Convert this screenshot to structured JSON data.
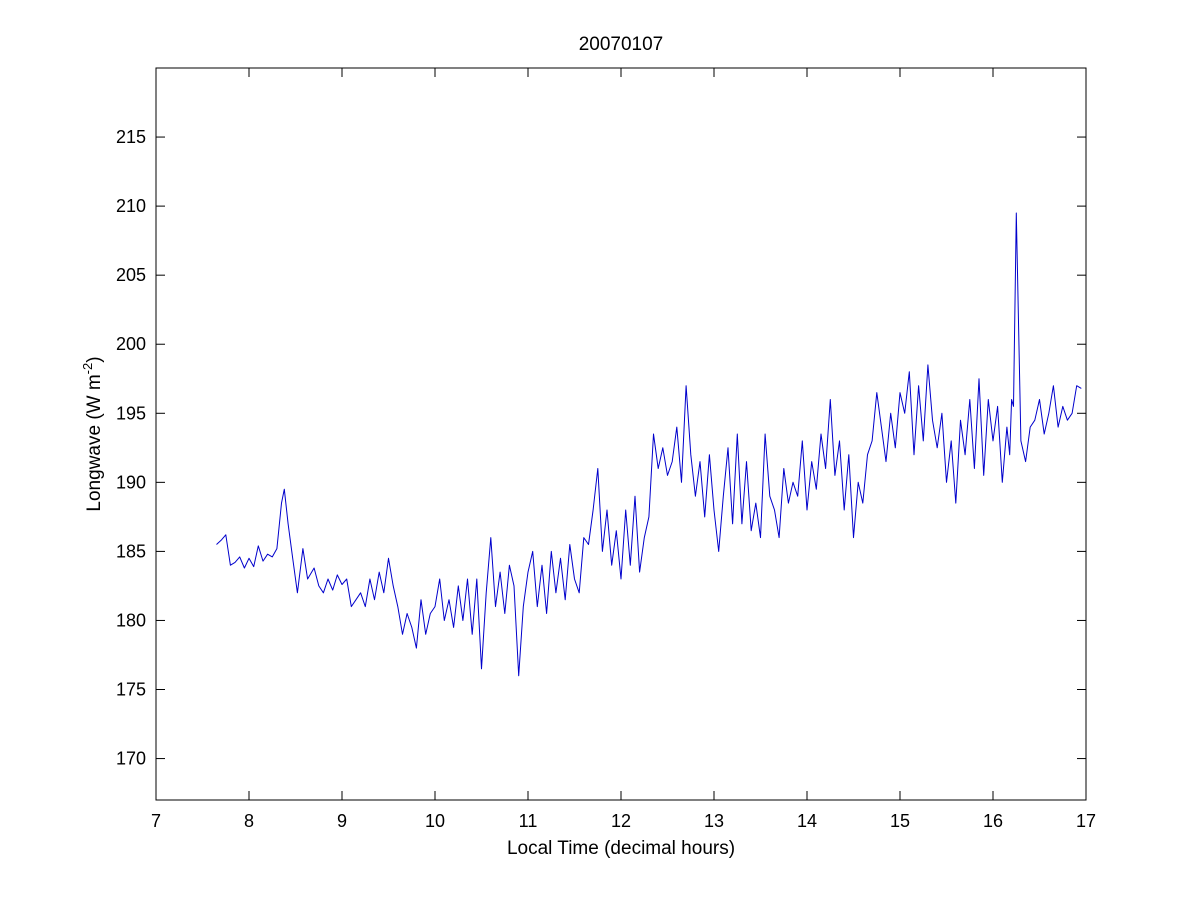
{
  "chart_data": {
    "type": "line",
    "title": "20070107",
    "xlabel": "Local Time (decimal hours)",
    "ylabel": {
      "text": "Longwave (W m",
      "superscript": "-2",
      "suffix": ")"
    },
    "xlim": [
      7,
      17
    ],
    "ylim": [
      167,
      220
    ],
    "xticks": [
      7,
      8,
      9,
      10,
      11,
      12,
      13,
      14,
      15,
      16,
      17
    ],
    "yticks": [
      170,
      175,
      180,
      185,
      190,
      195,
      200,
      205,
      210,
      215
    ],
    "grid": false,
    "line_color": "#0000cc",
    "series": [
      {
        "x": [
          7.65,
          7.7,
          7.75,
          7.8,
          7.85,
          7.9,
          7.95,
          8.0,
          8.05,
          8.1,
          8.15,
          8.2,
          8.25,
          8.3,
          8.35,
          8.38,
          8.42,
          8.47,
          8.52,
          8.58,
          8.63,
          8.7,
          8.75,
          8.8,
          8.85,
          8.9,
          8.95,
          9.0,
          9.05,
          9.1,
          9.15,
          9.2,
          9.25,
          9.3,
          9.35,
          9.4,
          9.45,
          9.5,
          9.55,
          9.6,
          9.65,
          9.7,
          9.75,
          9.8,
          9.85,
          9.9,
          9.95,
          10.0,
          10.05,
          10.1,
          10.15,
          10.2,
          10.25,
          10.3,
          10.35,
          10.4,
          10.45,
          10.5,
          10.55,
          10.6,
          10.65,
          10.7,
          10.75,
          10.8,
          10.85,
          10.9,
          10.95,
          11.0,
          11.05,
          11.1,
          11.15,
          11.2,
          11.25,
          11.3,
          11.35,
          11.4,
          11.45,
          11.5,
          11.55,
          11.6,
          11.65,
          11.7,
          11.75,
          11.8,
          11.85,
          11.9,
          11.95,
          12.0,
          12.05,
          12.1,
          12.15,
          12.2,
          12.25,
          12.3,
          12.35,
          12.4,
          12.45,
          12.5,
          12.55,
          12.6,
          12.65,
          12.7,
          12.75,
          12.8,
          12.85,
          12.9,
          12.95,
          13.0,
          13.05,
          13.1,
          13.15,
          13.2,
          13.25,
          13.3,
          13.35,
          13.4,
          13.45,
          13.5,
          13.55,
          13.6,
          13.65,
          13.7,
          13.75,
          13.8,
          13.85,
          13.9,
          13.95,
          14.0,
          14.05,
          14.1,
          14.15,
          14.2,
          14.25,
          14.3,
          14.35,
          14.4,
          14.45,
          14.5,
          14.55,
          14.6,
          14.65,
          14.7,
          14.75,
          14.8,
          14.85,
          14.9,
          14.95,
          15.0,
          15.05,
          15.1,
          15.15,
          15.2,
          15.25,
          15.3,
          15.35,
          15.4,
          15.45,
          15.5,
          15.55,
          15.6,
          15.65,
          15.7,
          15.75,
          15.8,
          15.85,
          15.9,
          15.95,
          16.0,
          16.05,
          16.1,
          16.15,
          16.18,
          16.2,
          16.22,
          16.25,
          16.3,
          16.35,
          16.4,
          16.45,
          16.5,
          16.55,
          16.6,
          16.65,
          16.7,
          16.75,
          16.8,
          16.85,
          16.9,
          16.95
        ],
        "y": [
          185.5,
          185.8,
          186.2,
          184.0,
          184.2,
          184.6,
          183.8,
          184.5,
          183.9,
          185.4,
          184.3,
          184.8,
          184.6,
          185.2,
          188.5,
          189.5,
          187.0,
          184.5,
          182.0,
          185.2,
          183.0,
          183.8,
          182.5,
          182.0,
          183.0,
          182.2,
          183.3,
          182.6,
          183.0,
          181.0,
          181.5,
          182.0,
          181.0,
          183.0,
          181.5,
          183.5,
          182.0,
          184.5,
          182.5,
          181.0,
          179.0,
          180.5,
          179.5,
          178.0,
          181.5,
          179.0,
          180.5,
          181.0,
          183.0,
          180.0,
          181.5,
          179.5,
          182.5,
          180.0,
          183.0,
          179.0,
          183.0,
          176.5,
          182.0,
          186.0,
          181.0,
          183.5,
          180.5,
          184.0,
          182.5,
          176.0,
          181.0,
          183.5,
          185.0,
          181.0,
          184.0,
          180.5,
          185.0,
          182.0,
          184.5,
          181.5,
          185.5,
          183.0,
          182.0,
          186.0,
          185.5,
          188.0,
          191.0,
          185.0,
          188.0,
          184.0,
          186.5,
          183.0,
          188.0,
          184.0,
          189.0,
          183.5,
          186.0,
          187.5,
          193.5,
          191.0,
          192.5,
          190.5,
          191.5,
          194.0,
          190.0,
          197.0,
          192.0,
          189.0,
          191.5,
          187.5,
          192.0,
          188.0,
          185.0,
          189.0,
          192.5,
          187.0,
          193.5,
          187.0,
          191.5,
          186.5,
          188.5,
          186.0,
          193.5,
          189.0,
          188.0,
          186.0,
          191.0,
          188.5,
          190.0,
          189.0,
          193.0,
          188.0,
          191.5,
          189.5,
          193.5,
          191.0,
          196.0,
          190.5,
          193.0,
          188.0,
          192.0,
          186.0,
          190.0,
          188.5,
          192.0,
          193.0,
          196.5,
          194.0,
          191.5,
          195.0,
          192.5,
          196.5,
          195.0,
          198.0,
          192.0,
          197.0,
          193.0,
          198.5,
          194.5,
          192.5,
          195.0,
          190.0,
          193.0,
          188.5,
          194.5,
          192.0,
          196.0,
          191.0,
          197.5,
          190.5,
          196.0,
          193.0,
          195.5,
          190.0,
          194.0,
          192.0,
          196.0,
          195.5,
          209.5,
          193.0,
          191.5,
          194.0,
          194.5,
          196.0,
          193.5,
          195.0,
          197.0,
          194.0,
          195.5,
          194.5,
          195.0,
          197.0,
          196.8
        ]
      }
    ]
  }
}
